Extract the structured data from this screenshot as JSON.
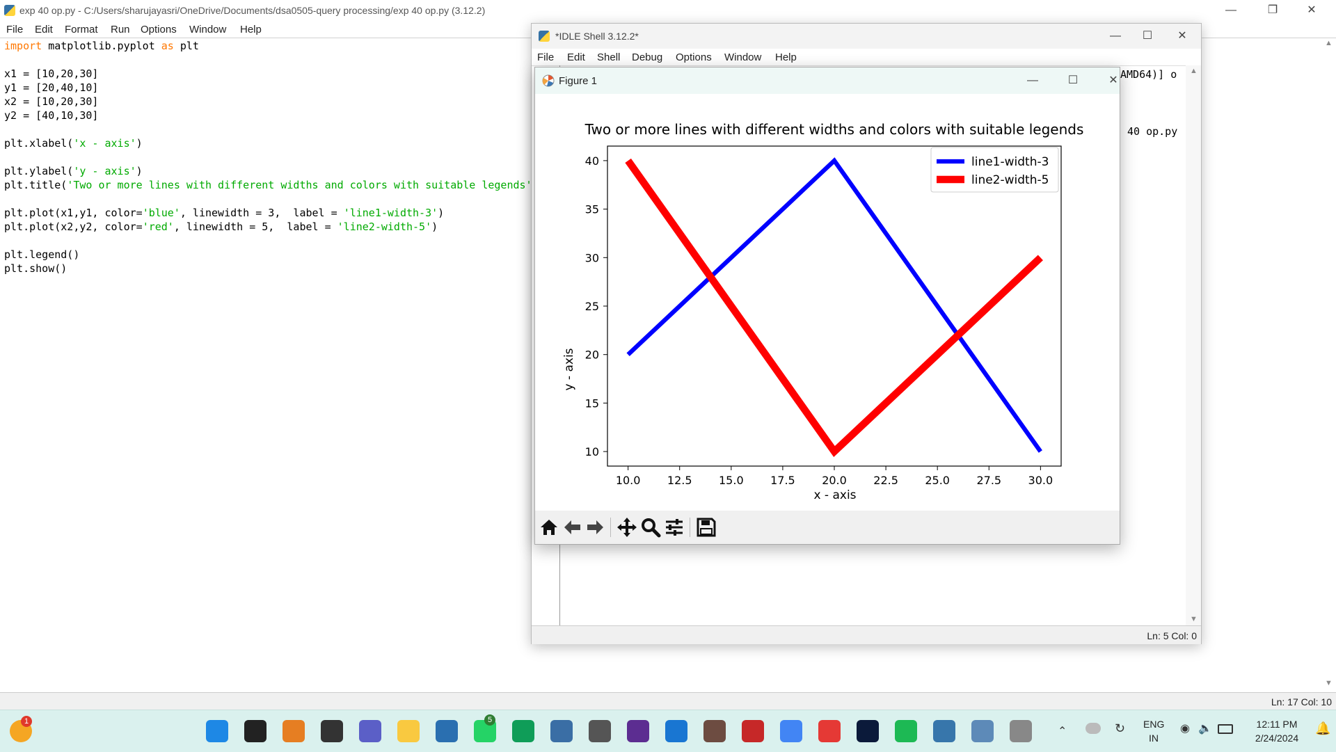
{
  "editor": {
    "title": "exp 40 op.py - C:/Users/sharujayasri/OneDrive/Documents/dsa0505-query processing/exp 40 op.py (3.12.2)",
    "menu": [
      "File",
      "Edit",
      "Format",
      "Run",
      "Options",
      "Window",
      "Help"
    ],
    "code": {
      "line1_kw1": "import",
      "line1_mid": " matplotlib.pyplot ",
      "line1_kw2": "as",
      "line1_end": " plt",
      "line3": "x1 = [10,20,30]",
      "line4": "y1 = [20,40,10]",
      "line5": "x2 = [10,20,30]",
      "line6": "y2 = [40,10,30]",
      "line8_a": "plt.xlabel(",
      "line8_s": "'x - axis'",
      "line8_b": ")",
      "line10_a": "plt.ylabel(",
      "line10_s": "'y - axis'",
      "line10_b": ")",
      "line11_a": "plt.title(",
      "line11_s": "'Two or more lines with different widths and colors with suitable legends'",
      "line11_b": ")",
      "line13_a": "plt.plot(x1,y1, color=",
      "line13_s1": "'blue'",
      "line13_b": ", linewidth = 3,  label = ",
      "line13_s2": "'line1-width-3'",
      "line13_c": ")",
      "line14_a": "plt.plot(x2,y2, color=",
      "line14_s1": "'red'",
      "line14_b": ", linewidth = 5,  label = ",
      "line14_s2": "'line2-width-5'",
      "line14_c": ")",
      "line16": "plt.legend()",
      "line17": "plt.show()"
    },
    "status": "Ln: 17   Col: 10"
  },
  "shell": {
    "title": "*IDLE Shell 3.12.2*",
    "menu": [
      "File",
      "Edit",
      "Shell",
      "Debug",
      "Options",
      "Window",
      "Help"
    ],
    "text1": "AMD64)] o",
    "text2": "40 op.py",
    "status": "Ln: 5   Col: 0"
  },
  "figure": {
    "title": "Figure 1",
    "toolbar_icons": [
      "home-icon",
      "back-arrow-icon",
      "forward-arrow-icon",
      "pan-icon",
      "zoom-icon",
      "configure-subplots-icon",
      "save-icon"
    ]
  },
  "chart_data": {
    "type": "line",
    "title": "Two or more lines with different widths and colors with suitable legends",
    "xlabel": "x - axis",
    "ylabel": "y - axis",
    "xlim": [
      9,
      31
    ],
    "ylim": [
      8.5,
      41.5
    ],
    "xticks": [
      "10.0",
      "12.5",
      "15.0",
      "17.5",
      "20.0",
      "22.5",
      "25.0",
      "27.5",
      "30.0"
    ],
    "yticks": [
      "10",
      "15",
      "20",
      "25",
      "30",
      "35",
      "40"
    ],
    "legend_position": "top-right",
    "grid": false,
    "series": [
      {
        "name": "line1-width-3",
        "color": "#0000ff",
        "linewidth": 3,
        "x": [
          10,
          20,
          30
        ],
        "y": [
          20,
          40,
          10
        ]
      },
      {
        "name": "line2-width-5",
        "color": "#ff0000",
        "linewidth": 5,
        "x": [
          10,
          20,
          30
        ],
        "y": [
          40,
          10,
          30
        ]
      }
    ]
  },
  "taskbar": {
    "notification_badge": "1",
    "whatsapp_badge": "5",
    "lang_top": "ENG",
    "lang_bottom": "IN",
    "time": "12:11 PM",
    "date": "2/24/2024",
    "apps": [
      "start-icon",
      "search-icon",
      "copilot-icon",
      "task-view-icon",
      "teams-icon",
      "file-explorer-icon",
      "shark-icon",
      "whatsapp-icon",
      "edge-icon",
      "store-icon",
      "app-icon",
      "visual-studio-icon",
      "monitor-app-icon",
      "tool-icon",
      "devcpp-icon",
      "chrome-icon",
      "opera-icon",
      "disney-icon",
      "spotify-icon",
      "python-icon",
      "idle-icon",
      "figure-icon"
    ]
  }
}
